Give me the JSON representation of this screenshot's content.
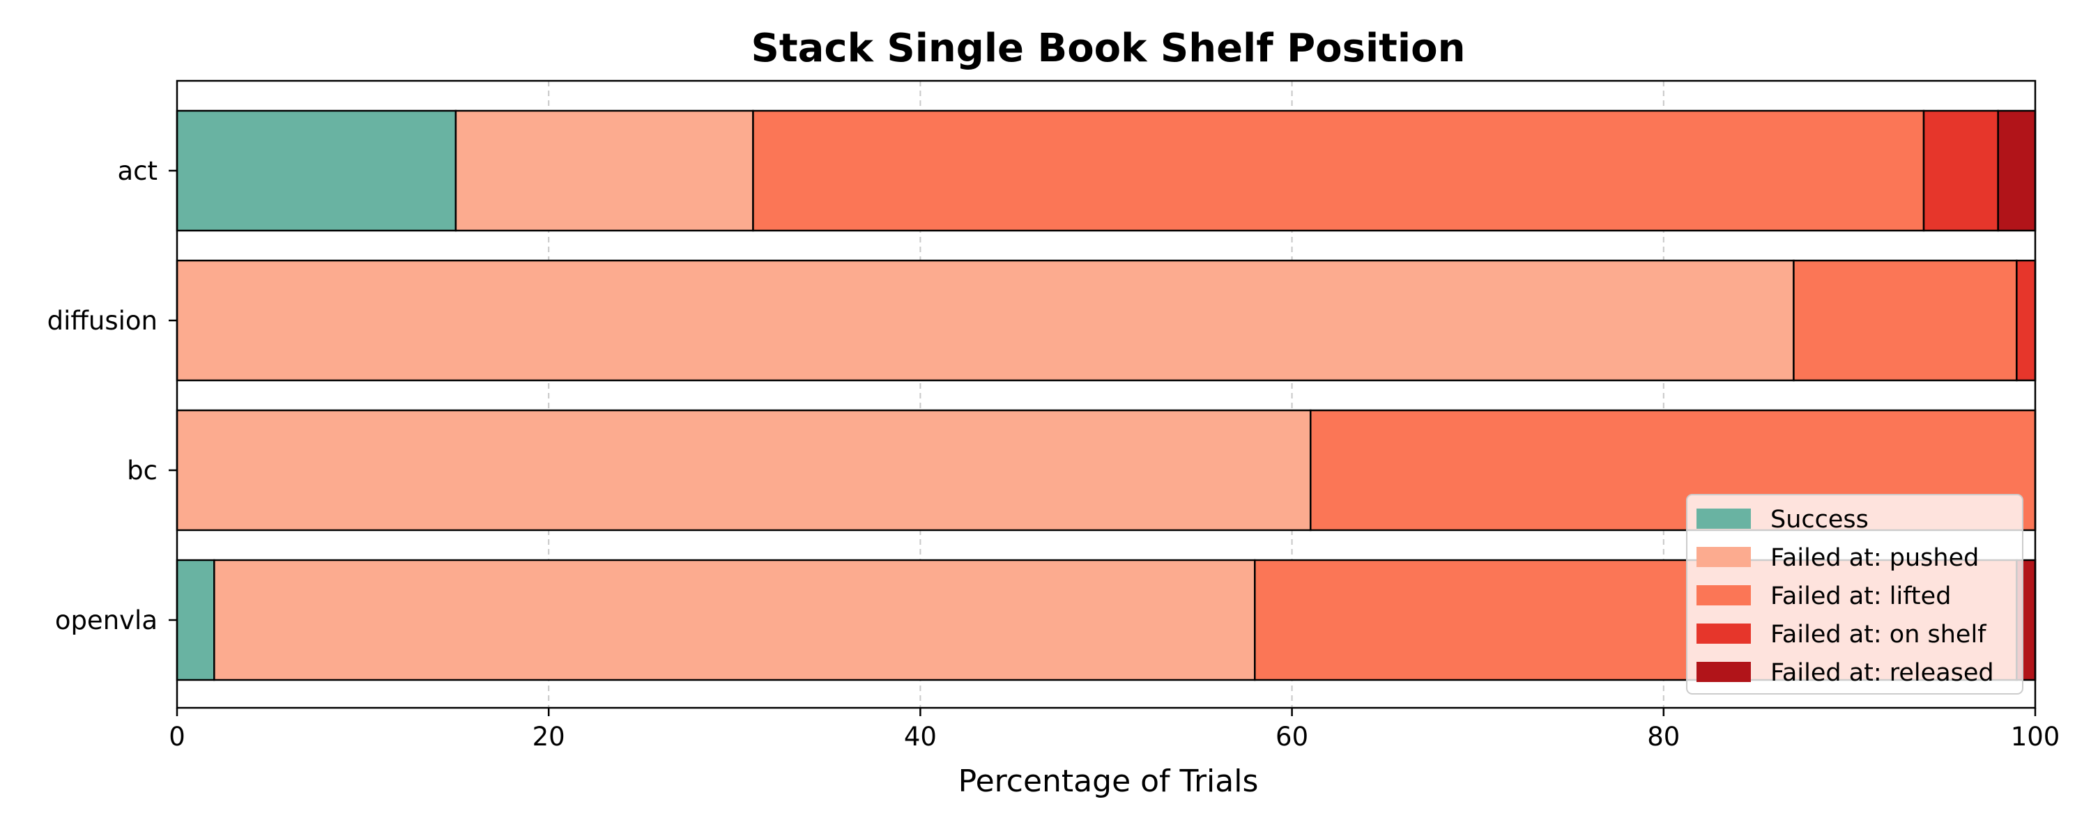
{
  "chart_data": {
    "type": "bar",
    "orientation": "horizontal",
    "stacked": true,
    "title": "Stack Single Book Shelf Position",
    "xlabel": "Percentage of Trials",
    "ylabel": "",
    "xlim": [
      0,
      100
    ],
    "xticks": [
      0,
      20,
      40,
      60,
      80,
      100
    ],
    "grid": "vertical-dashed",
    "legend_position": "lower-right",
    "categories": [
      "act",
      "diffusion",
      "bc",
      "openvla"
    ],
    "series": [
      {
        "name": "Success",
        "color": "#69b3a2",
        "values": [
          15,
          0,
          0,
          2
        ]
      },
      {
        "name": "Failed at: pushed",
        "color": "#fcab8f",
        "values": [
          16,
          87,
          61,
          56
        ]
      },
      {
        "name": "Failed at: lifted",
        "color": "#fb7656",
        "values": [
          63,
          12,
          39,
          41
        ]
      },
      {
        "name": "Failed at: on shelf",
        "color": "#e6362b",
        "values": [
          4,
          1,
          0,
          0
        ]
      },
      {
        "name": "Failed at: released",
        "color": "#b11419",
        "values": [
          2,
          0,
          0,
          1
        ]
      }
    ]
  }
}
